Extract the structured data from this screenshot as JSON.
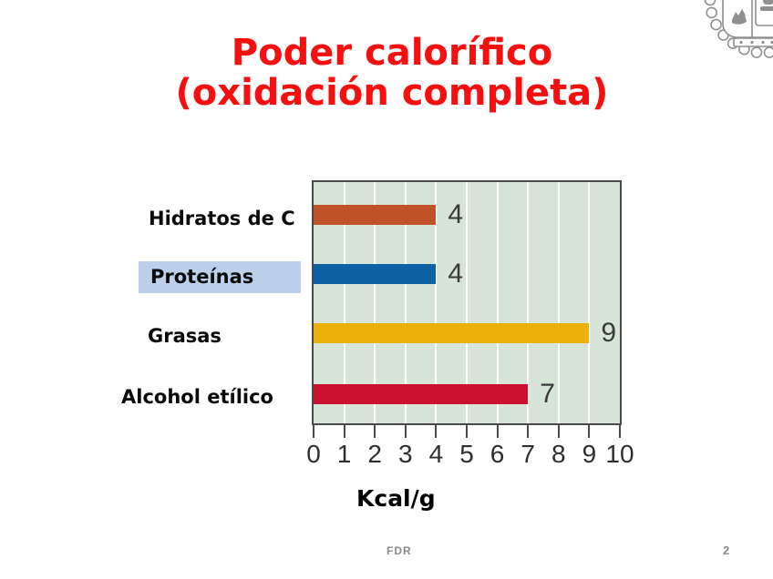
{
  "slide": {
    "title_line1": "Poder calorífico",
    "title_line2": "(oxidación completa)",
    "title_color": "#f50f0f",
    "footer_text": "FDR",
    "page_number": "2"
  },
  "logo": {
    "name": "university-seal",
    "color": "#8f8f8f"
  },
  "chart_data": {
    "type": "bar",
    "orientation": "horizontal",
    "title": "Poder calorífico (oxidación completa)",
    "categories": [
      "Hidratos de C",
      "Proteínas",
      "Grasas",
      "Alcohol etílico"
    ],
    "values": [
      4,
      4,
      9,
      7
    ],
    "bar_colors": [
      "#bf5327",
      "#0f61a5",
      "#eab10d",
      "#cb1030"
    ],
    "xlabel": "Kcal/g",
    "x_ticks": [
      0,
      1,
      2,
      3,
      4,
      5,
      6,
      7,
      8,
      9,
      10
    ],
    "xlim": [
      0,
      10
    ],
    "grid": true,
    "gridline_color": "#ffffff",
    "plot_bg": "#d7e4d8",
    "axis_color": "#4a4a4a",
    "value_label_color": "#3a3a3a",
    "legend": "none",
    "highlighted_category": "Proteínas",
    "highlight_color": "#bdd0e9"
  }
}
